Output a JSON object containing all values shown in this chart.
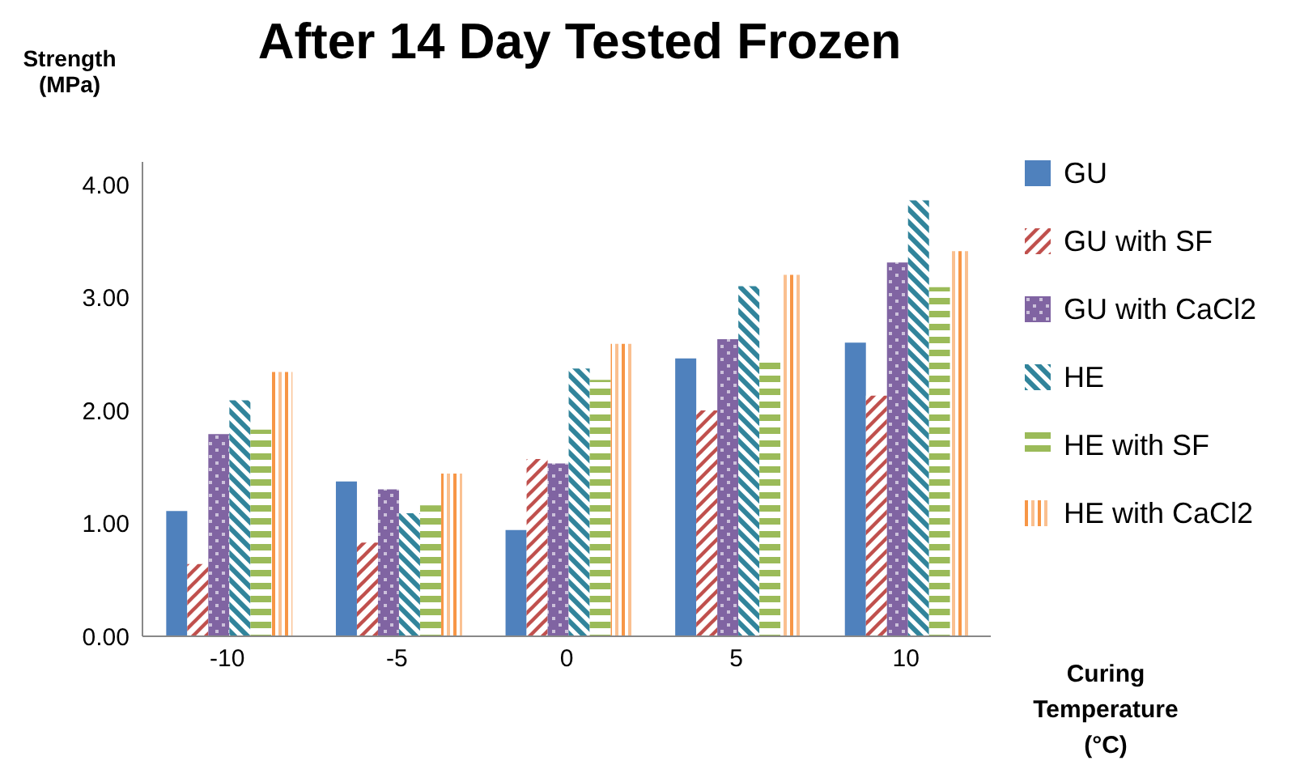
{
  "chart_data": {
    "type": "bar",
    "title": "After 14 Day Tested Frozen",
    "xlabel": "Curing Temperature (°C)",
    "ylabel": "Strength (MPa)",
    "categories": [
      "-10",
      "-5",
      "0",
      "5",
      "10"
    ],
    "series": [
      {
        "name": "GU",
        "color": "#4f81bd",
        "values": [
          1.11,
          1.37,
          0.94,
          2.46,
          2.6
        ]
      },
      {
        "name": "GU with SF",
        "color": "#c0504d",
        "values": [
          0.64,
          0.83,
          1.57,
          2.0,
          2.13
        ]
      },
      {
        "name": "GU with CaCl2",
        "color": "#8064a2",
        "values": [
          1.79,
          1.3,
          1.53,
          2.63,
          3.31
        ]
      },
      {
        "name": "HE",
        "color": "#31849b",
        "values": [
          2.09,
          1.09,
          2.37,
          3.1,
          3.86
        ]
      },
      {
        "name": "HE with SF",
        "color": "#9bbb59",
        "values": [
          1.83,
          1.16,
          2.27,
          2.46,
          3.09
        ]
      },
      {
        "name": "HE with CaCl2",
        "color": "#f79646",
        "values": [
          2.34,
          1.44,
          2.59,
          3.2,
          3.41
        ]
      }
    ],
    "ylim": [
      0,
      4.2
    ],
    "yticks": [
      {
        "value": 0,
        "label": "0.00"
      },
      {
        "value": 1,
        "label": "1.00"
      },
      {
        "value": 2,
        "label": "2.00"
      },
      {
        "value": 3,
        "label": "3.00"
      },
      {
        "value": 4,
        "label": "4.00"
      }
    ],
    "grid": false,
    "legend": "right"
  }
}
